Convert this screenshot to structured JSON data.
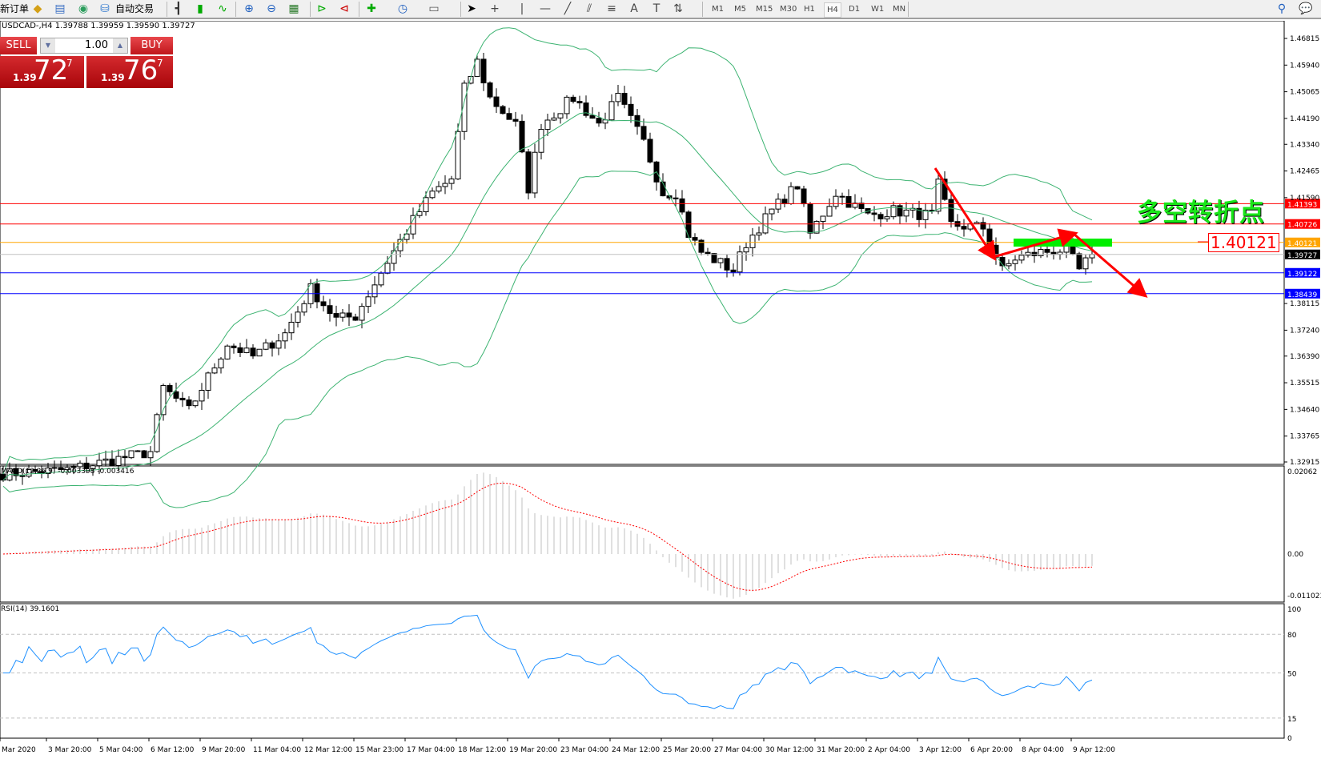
{
  "toolbar": {
    "new_order": "新订单",
    "auto_trading": "自动交易",
    "icons": [
      "market-watch-icon",
      "navigator-icon",
      "signals-icon",
      "auto-trading-icon",
      "bar-chart-icon",
      "candlestick-icon",
      "line-chart-icon",
      "zoom-in-icon",
      "zoom-out-icon",
      "tile-windows-icon",
      "chart-shift-icon",
      "autoscroll-icon",
      "indicators-icon",
      "periods-icon",
      "templates-icon",
      "cursor-icon",
      "crosshair-icon",
      "vertical-line-icon",
      "horizontal-line-icon",
      "trendline-icon",
      "equidistant-channel-icon",
      "fibonacci-icon",
      "text-icon",
      "text-label-icon",
      "arrows-icon",
      "search-icon",
      "chat-icon"
    ],
    "timeframes": [
      "M1",
      "M5",
      "M15",
      "M30",
      "H1",
      "H4",
      "D1",
      "W1",
      "MN"
    ],
    "active_timeframe": "H4"
  },
  "chart": {
    "header": "USDCAD-,H4  1.39788 1.39959 1.39590 1.39727",
    "trade_panel": {
      "sell": "SELL",
      "buy": "BUY",
      "lot": "1.00",
      "sell_small": "1.39",
      "sell_big": "72",
      "sell_sup": "7",
      "buy_small": "1.39",
      "buy_big": "76",
      "buy_sup": "7"
    },
    "price_axis": [
      "1.46815",
      "1.45940",
      "1.45065",
      "1.44190",
      "1.43340",
      "1.42465",
      "1.41590",
      "1.38115",
      "1.37240",
      "1.36390",
      "1.35515",
      "1.34640",
      "1.33765",
      "1.32915"
    ],
    "levels": [
      {
        "price": "1.41393",
        "color": "#ff0000"
      },
      {
        "price": "1.40726",
        "color": "#ff0000"
      },
      {
        "price": "1.40121",
        "color": "#ffa500"
      },
      {
        "price": "1.39727",
        "color": "#000000",
        "line": "#c0c0c0"
      },
      {
        "price": "1.39122",
        "color": "#0000ff"
      },
      {
        "price": "1.38439",
        "color": "#0000ff"
      }
    ],
    "annotation_text": "多空转折点",
    "annotation_price": "1.40121",
    "colors": {
      "bands": "#3cb371",
      "macd_signal": "#ff0000",
      "macd_hist": "#c0c0c0",
      "rsi": "#1e90ff",
      "arrow": "#ff0000",
      "zone": "#00ee00"
    }
  },
  "macd": {
    "label": "MACD(12,26,9) -0.003398 -0.003416",
    "axis": [
      "0.02062",
      "0.00",
      "-0.011023"
    ]
  },
  "rsi": {
    "label": "RSI(14) 39.1601",
    "axis": [
      "100",
      "80",
      "50",
      "15",
      "0"
    ]
  },
  "time_axis": [
    "Mar 2020",
    "3 Mar 20:00",
    "5 Mar 04:00",
    "6 Mar 12:00",
    "9 Mar 20:00",
    "11 Mar 04:00",
    "12 Mar 12:00",
    "15 Mar 23:00",
    "17 Mar 04:00",
    "18 Mar 12:00",
    "19 Mar 20:00",
    "23 Mar 04:00",
    "24 Mar 12:00",
    "25 Mar 20:00",
    "27 Mar 04:00",
    "30 Mar 12:00",
    "31 Mar 20:00",
    "2 Apr 04:00",
    "3 Apr 12:00",
    "6 Apr 20:00",
    "8 Apr 04:00",
    "9 Apr 12:00"
  ],
  "chart_data": {
    "type": "candlestick",
    "symbol": "USDCAD",
    "timeframe": "H4",
    "ylim": [
      1.32915,
      1.46815
    ],
    "close_path": [
      [
        0,
        1.3252
      ],
      [
        10,
        1.3266
      ],
      [
        23,
        1.3325
      ],
      [
        25,
        1.3535
      ],
      [
        29,
        1.346
      ],
      [
        35,
        1.368
      ],
      [
        39,
        1.3637
      ],
      [
        44,
        1.3713
      ],
      [
        48,
        1.386
      ],
      [
        52,
        1.376
      ],
      [
        55,
        1.377
      ],
      [
        60,
        1.395
      ],
      [
        64,
        1.4084
      ],
      [
        67,
        1.4175
      ],
      [
        70,
        1.422
      ],
      [
        72,
        1.4517
      ],
      [
        74,
        1.4605
      ],
      [
        76,
        1.4486
      ],
      [
        80,
        1.4398
      ],
      [
        82,
        1.419
      ],
      [
        84,
        1.44
      ],
      [
        89,
        1.4486
      ],
      [
        93,
        1.44
      ],
      [
        96,
        1.4486
      ],
      [
        100,
        1.434
      ],
      [
        103,
        1.4175
      ],
      [
        105,
        1.4175
      ],
      [
        107,
        1.4039
      ],
      [
        109,
        1.398
      ],
      [
        114,
        1.392
      ],
      [
        116,
        1.401
      ],
      [
        120,
        1.4116
      ],
      [
        124,
        1.42
      ],
      [
        126,
        1.404
      ],
      [
        130,
        1.4175
      ],
      [
        135,
        1.41
      ],
      [
        139,
        1.4116
      ],
      [
        145,
        1.41
      ],
      [
        146,
        1.42
      ],
      [
        148,
        1.407
      ],
      [
        153,
        1.406
      ],
      [
        156,
        1.392
      ],
      [
        158,
        1.396
      ],
      [
        162,
        1.398
      ],
      [
        166,
        1.399
      ],
      [
        168,
        1.392
      ],
      [
        170,
        1.3973
      ]
    ],
    "indicators": [
      "Bollinger Bands(20,2)",
      "MACD(12,26,9)",
      "RSI(14)"
    ]
  }
}
